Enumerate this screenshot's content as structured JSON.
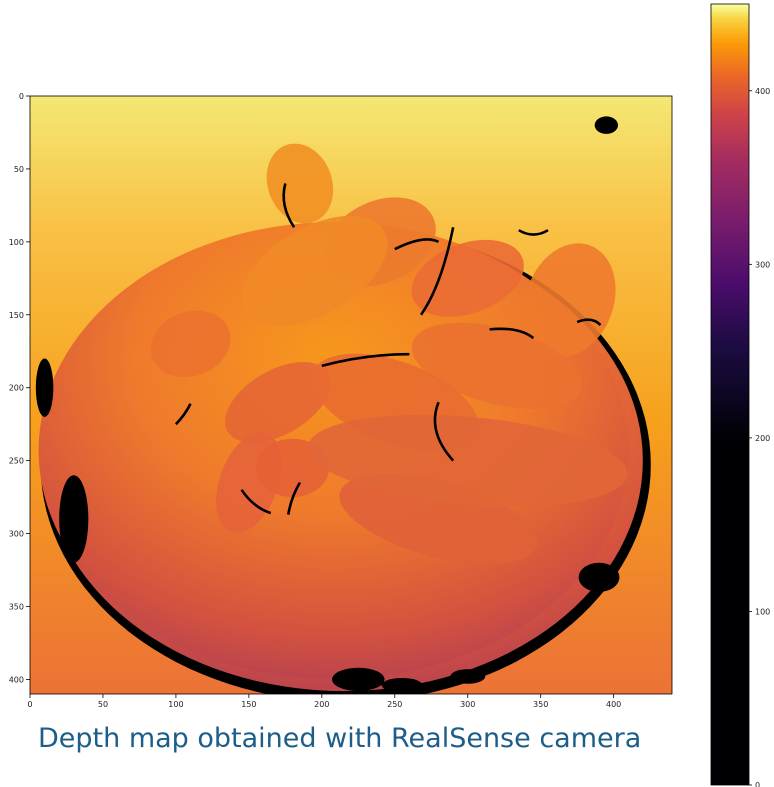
{
  "caption": "Depth map obtained with RealSense camera",
  "colors": {
    "caption": "#1d5d8a",
    "hole": "#000000",
    "colormap": "inferno"
  },
  "chart_data": {
    "type": "heatmap",
    "title": "",
    "xlabel": "",
    "ylabel": "",
    "xlim": [
      0,
      440
    ],
    "ylim": [
      0,
      410
    ],
    "y_inverted": true,
    "x_ticks": [
      0,
      50,
      100,
      150,
      200,
      250,
      300,
      350,
      400
    ],
    "y_ticks": [
      0,
      50,
      100,
      150,
      200,
      250,
      300,
      350,
      400
    ],
    "colorbar": {
      "range": [
        0,
        450
      ],
      "ticks": [
        0,
        100,
        200,
        300,
        400
      ],
      "colormap": "inferno"
    },
    "scene": {
      "background_depth_top": 440,
      "background_depth_bottom": 390,
      "disc_center": [
        215,
        250
      ],
      "disc_radius": [
        205,
        158
      ],
      "disc_depth_range": [
        340,
        410
      ],
      "holes": "black (value 0) at disc rim and object edges"
    }
  }
}
